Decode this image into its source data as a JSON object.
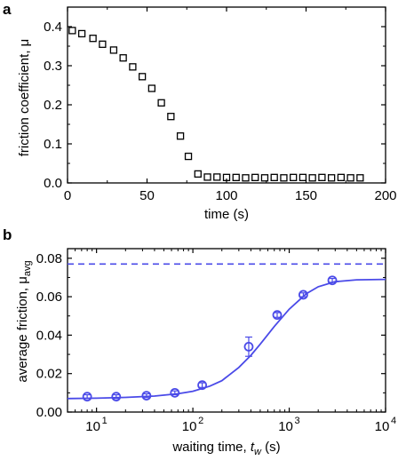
{
  "chart_data": [
    {
      "type": "scatter",
      "panel_label": "a",
      "xlabel": "time (s)",
      "ylabel": "friction coefficient, μ",
      "xlim": [
        0,
        200
      ],
      "ylim": [
        0,
        0.45
      ],
      "xticks": [
        0,
        50,
        100,
        150,
        200
      ],
      "yticks": [
        0.0,
        0.1,
        0.2,
        0.3,
        0.4
      ],
      "xtick_labels": [
        "0",
        "50",
        "100",
        "150",
        "200"
      ],
      "ytick_labels": [
        "0.0",
        "0.1",
        "0.2",
        "0.3",
        "0.4"
      ],
      "marker": "open-square",
      "color": "#000000",
      "series": [
        {
          "x": [
            3,
            9,
            16,
            22,
            29,
            35,
            41,
            47,
            53,
            59,
            65,
            71,
            76,
            82,
            88,
            94,
            100,
            106,
            112,
            118,
            124,
            130,
            136,
            142,
            148,
            154,
            160,
            166,
            172,
            178,
            184
          ],
          "y": [
            0.39,
            0.382,
            0.37,
            0.355,
            0.34,
            0.32,
            0.297,
            0.272,
            0.242,
            0.205,
            0.17,
            0.12,
            0.068,
            0.023,
            0.015,
            0.015,
            0.014,
            0.014,
            0.013,
            0.014,
            0.013,
            0.014,
            0.013,
            0.014,
            0.014,
            0.013,
            0.014,
            0.013,
            0.014,
            0.013,
            0.013
          ]
        }
      ]
    },
    {
      "type": "scatter",
      "panel_label": "b",
      "xlabel_prefix": "waiting time, ",
      "xlabel_var": "t",
      "xlabel_sub": "w",
      "xlabel_suffix": " (s)",
      "ylabel_prefix": "average friction, μ",
      "ylabel_sub": "avg",
      "xscale": "log",
      "xlim": [
        5,
        10000
      ],
      "ylim": [
        0,
        0.085
      ],
      "xticks": [
        10,
        100,
        1000,
        10000
      ],
      "xtick_exponents": [
        "1",
        "2",
        "3",
        "4"
      ],
      "yticks": [
        0.0,
        0.02,
        0.04,
        0.06,
        0.08
      ],
      "ytick_labels": [
        "0.00",
        "0.02",
        "0.04",
        "0.06",
        "0.08"
      ],
      "color": "#4a4ae8",
      "series": [
        {
          "marker": "open-circle",
          "x": [
            8,
            16,
            33,
            65,
            125,
            380,
            750,
            1400,
            2800
          ],
          "y": [
            0.008,
            0.008,
            0.0085,
            0.01,
            0.014,
            0.034,
            0.0505,
            0.061,
            0.0685
          ],
          "yerr": [
            0.001,
            0.001,
            0.001,
            0.001,
            0.0012,
            0.005,
            0.0012,
            0.001,
            0.001
          ]
        },
        {
          "marker": "none",
          "line": "solid",
          "x": [
            5,
            10,
            20,
            40,
            70,
            100,
            150,
            200,
            300,
            400,
            500,
            700,
            1000,
            1500,
            2000,
            3000,
            5000,
            10000
          ],
          "y": [
            0.007,
            0.0072,
            0.0076,
            0.0083,
            0.0095,
            0.0108,
            0.0135,
            0.0163,
            0.0232,
            0.0295,
            0.0353,
            0.0445,
            0.0535,
            0.0615,
            0.0652,
            0.0678,
            0.0688,
            0.069
          ]
        },
        {
          "marker": "none",
          "line": "dashed",
          "x": [
            5,
            10000
          ],
          "y": [
            0.077,
            0.077
          ]
        }
      ]
    }
  ]
}
